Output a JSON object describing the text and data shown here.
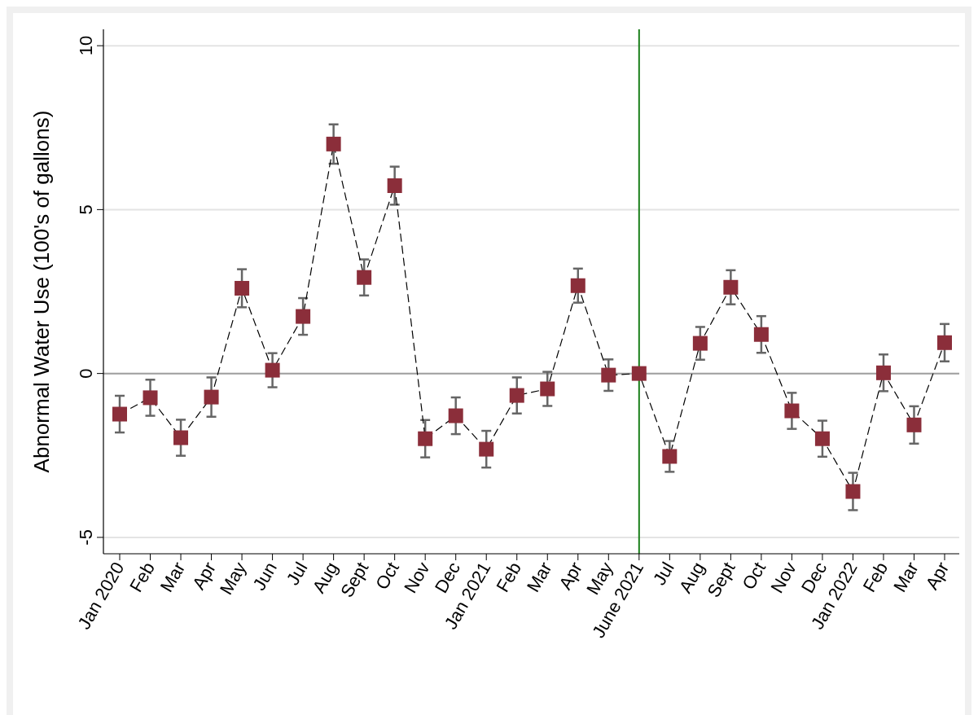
{
  "chart_data": {
    "type": "line",
    "ylabel": "Abnormal Water Use (100's of gallons)",
    "categories": [
      "Jan 2020",
      "Feb",
      "Mar",
      "Apr",
      "May",
      "Jun",
      "Jul",
      "Aug",
      "Sept",
      "Oct",
      "Nov",
      "Dec",
      "Jan 2021",
      "Feb",
      "Mar",
      "Apr",
      "May",
      "June 2021",
      "Jul",
      "Aug",
      "Sept",
      "Oct",
      "Nov",
      "Dec",
      "Jan 2022",
      "Feb",
      "Mar",
      "Apr"
    ],
    "series": [
      {
        "color": "#8b2e3a",
        "values": [
          -1.24,
          -0.74,
          -1.96,
          -0.72,
          2.6,
          0.1,
          1.74,
          7.0,
          2.93,
          5.73,
          -1.99,
          -1.29,
          -2.31,
          -0.67,
          -0.47,
          2.68,
          -0.05,
          0,
          -2.53,
          0.92,
          2.63,
          1.19,
          -1.14,
          -1.99,
          -3.6,
          0.02,
          -1.57,
          0.94
        ],
        "errors": [
          0.56,
          0.55,
          0.55,
          0.6,
          0.58,
          0.52,
          0.56,
          0.6,
          0.55,
          0.58,
          0.57,
          0.56,
          0.56,
          0.55,
          0.52,
          0.52,
          0.48,
          null,
          0.47,
          0.5,
          0.52,
          0.56,
          0.55,
          0.55,
          0.57,
          0.56,
          0.57,
          0.57
        ]
      }
    ],
    "ylim": [
      -5.5,
      10.5
    ],
    "yticks": [
      -5,
      0,
      5,
      10
    ],
    "grid": "y",
    "marker": "square",
    "line_style": "dashed",
    "ref_lines": [
      {
        "axis": "y",
        "value": 0,
        "color": "#a0a0a0"
      },
      {
        "axis": "x",
        "value": "June 2021",
        "color": "#1a7f1a"
      }
    ]
  }
}
